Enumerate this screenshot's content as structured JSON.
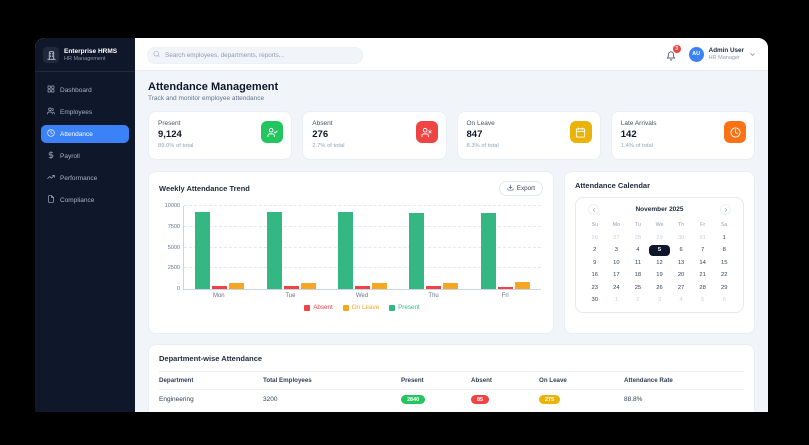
{
  "sidebar": {
    "brand": {
      "name": "Enterprise HRMS",
      "subtitle": "HR Management",
      "icon": "building-icon"
    },
    "items": [
      {
        "label": "Dashboard",
        "icon": "grid-icon",
        "active": false
      },
      {
        "label": "Employees",
        "icon": "users-icon",
        "active": false
      },
      {
        "label": "Attendance",
        "icon": "clock-icon",
        "active": true
      },
      {
        "label": "Payroll",
        "icon": "dollar-icon",
        "active": false
      },
      {
        "label": "Performance",
        "icon": "trend-icon",
        "active": false
      },
      {
        "label": "Compliance",
        "icon": "document-icon",
        "active": false
      }
    ]
  },
  "topbar": {
    "search_placeholder": "Search employees, departments, reports...",
    "notification_count": "3",
    "user": {
      "initials": "AU",
      "name": "Admin User",
      "role": "HR Manager"
    }
  },
  "page": {
    "title": "Attendance Management",
    "subtitle": "Track and monitor employee attendance"
  },
  "stats": [
    {
      "label": "Present",
      "value": "9,124",
      "sub": "89.0% of total",
      "color": "#22c55e",
      "icon": "user-check-icon"
    },
    {
      "label": "Absent",
      "value": "276",
      "sub": "2.7% of total",
      "color": "#ef4444",
      "icon": "user-x-icon"
    },
    {
      "label": "On Leave",
      "value": "847",
      "sub": "8.3% of total",
      "color": "#eab308",
      "icon": "calendar-icon"
    },
    {
      "label": "Late Arrivals",
      "value": "142",
      "sub": "1.4% of total",
      "color": "#f97316",
      "icon": "clock-icon"
    }
  ],
  "chart": {
    "title": "Weekly Attendance Trend",
    "export_label": "Export"
  },
  "chart_data": {
    "type": "bar",
    "title": "Weekly Attendance Trend",
    "categories": [
      "Mon",
      "Tue",
      "Wed",
      "Thu",
      "Fri"
    ],
    "series": [
      {
        "name": "Present",
        "color": "#35b783",
        "values": [
          9300,
          9250,
          9300,
          9200,
          9200
        ]
      },
      {
        "name": "Absent",
        "color": "#ef4444",
        "values": [
          350,
          400,
          350,
          400,
          280
        ]
      },
      {
        "name": "On Leave",
        "color": "#f5a623",
        "values": [
          700,
          730,
          720,
          750,
          850
        ]
      }
    ],
    "legend": [
      {
        "label": "Absent",
        "color": "#ef4444"
      },
      {
        "label": "On Leave",
        "color": "#f5a623"
      },
      {
        "label": "Present",
        "color": "#35b783"
      }
    ],
    "xlabel": "",
    "ylabel": "",
    "ylim": [
      0,
      10000
    ],
    "yticks": [
      0,
      2500,
      5000,
      7500,
      10000
    ],
    "grid": "dashed-horizontal",
    "legend_position": "bottom"
  },
  "calendar": {
    "title": "Attendance Calendar",
    "month": "November 2025",
    "prev_icon": "chevron-left-icon",
    "next_icon": "chevron-right-icon",
    "weekdays": [
      "Su",
      "Mo",
      "Tu",
      "We",
      "Th",
      "Fr",
      "Sa"
    ],
    "selected_day": "5",
    "weeks": [
      [
        {
          "d": "26",
          "m": 1
        },
        {
          "d": "27",
          "m": 1
        },
        {
          "d": "28",
          "m": 1
        },
        {
          "d": "29",
          "m": 1
        },
        {
          "d": "30",
          "m": 1
        },
        {
          "d": "31",
          "m": 1
        },
        {
          "d": "1"
        }
      ],
      [
        {
          "d": "2"
        },
        {
          "d": "3"
        },
        {
          "d": "4"
        },
        {
          "d": "5",
          "s": 1
        },
        {
          "d": "6"
        },
        {
          "d": "7"
        },
        {
          "d": "8"
        }
      ],
      [
        {
          "d": "9"
        },
        {
          "d": "10"
        },
        {
          "d": "11"
        },
        {
          "d": "12"
        },
        {
          "d": "13"
        },
        {
          "d": "14"
        },
        {
          "d": "15"
        }
      ],
      [
        {
          "d": "16"
        },
        {
          "d": "17"
        },
        {
          "d": "18"
        },
        {
          "d": "19"
        },
        {
          "d": "20"
        },
        {
          "d": "21"
        },
        {
          "d": "22"
        }
      ],
      [
        {
          "d": "23"
        },
        {
          "d": "24"
        },
        {
          "d": "25"
        },
        {
          "d": "26"
        },
        {
          "d": "27"
        },
        {
          "d": "28"
        },
        {
          "d": "29"
        }
      ],
      [
        {
          "d": "30"
        },
        {
          "d": "1",
          "m": 1
        },
        {
          "d": "2",
          "m": 1
        },
        {
          "d": "3",
          "m": 1
        },
        {
          "d": "4",
          "m": 1
        },
        {
          "d": "5",
          "m": 1
        },
        {
          "d": "6",
          "m": 1
        }
      ]
    ]
  },
  "table": {
    "title": "Department-wise Attendance",
    "columns": [
      "Department",
      "Total Employees",
      "Present",
      "Absent",
      "On Leave",
      "Attendance Rate"
    ],
    "rows": [
      {
        "department": "Engineering",
        "total": "3200",
        "present": "2840",
        "absent": "85",
        "on_leave": "275",
        "rate": "88.8%"
      }
    ]
  }
}
